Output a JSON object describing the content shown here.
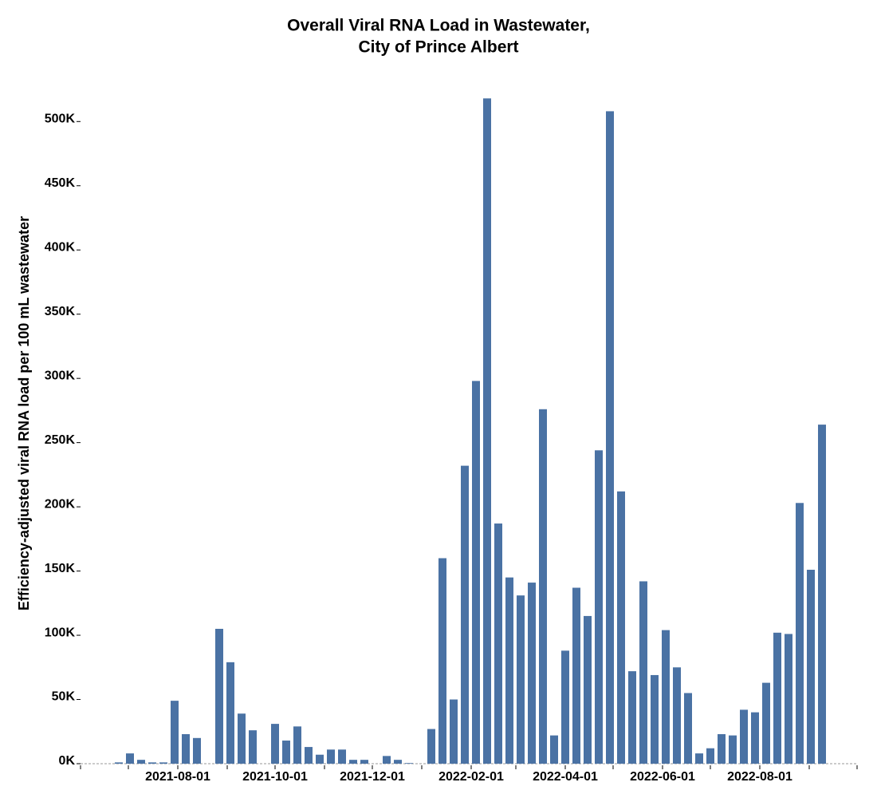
{
  "chart_data": {
    "type": "bar",
    "title": [
      "Overall Viral RNA Load in Wastewater,",
      "City of Prince Albert"
    ],
    "y_label": "Efficiency-adjusted viral RNA load per 100 mL wastewater",
    "color": "#4a72a4",
    "x": [
      "2021-06-25",
      "2021-07-02",
      "2021-07-09",
      "2021-07-16",
      "2021-07-23",
      "2021-07-30",
      "2021-08-06",
      "2021-08-13",
      "2021-08-20",
      "2021-08-27",
      "2021-09-03",
      "2021-09-10",
      "2021-09-17",
      "2021-09-24",
      "2021-10-01",
      "2021-10-08",
      "2021-10-15",
      "2021-10-22",
      "2021-10-29",
      "2021-11-05",
      "2021-11-12",
      "2021-11-19",
      "2021-11-26",
      "2021-12-03",
      "2021-12-10",
      "2021-12-17",
      "2021-12-24",
      "2021-12-31",
      "2022-01-07",
      "2022-01-14",
      "2022-01-21",
      "2022-01-28",
      "2022-02-04",
      "2022-02-11",
      "2022-02-18",
      "2022-02-25",
      "2022-03-04",
      "2022-03-11",
      "2022-03-18",
      "2022-03-25",
      "2022-04-01",
      "2022-04-08",
      "2022-04-15",
      "2022-04-22",
      "2022-04-29",
      "2022-05-06",
      "2022-05-13",
      "2022-05-20",
      "2022-05-27",
      "2022-06-03",
      "2022-06-10",
      "2022-06-17",
      "2022-06-24",
      "2022-07-01",
      "2022-07-08",
      "2022-07-15",
      "2022-07-22",
      "2022-07-29",
      "2022-08-05",
      "2022-08-12",
      "2022-08-19",
      "2022-08-26",
      "2022-09-02",
      "2022-09-09"
    ],
    "values": [
      1000,
      8000,
      3000,
      1000,
      1000,
      49000,
      23000,
      20000,
      null,
      105000,
      79000,
      39000,
      26000,
      null,
      31000,
      18000,
      29000,
      13000,
      7000,
      11000,
      11000,
      3000,
      3000,
      null,
      6000,
      3000,
      500,
      null,
      27000,
      160000,
      50000,
      232000,
      298000,
      518000,
      187000,
      145000,
      131000,
      141000,
      276000,
      22000,
      88000,
      137000,
      115000,
      244000,
      508000,
      212000,
      72000,
      142000,
      69000,
      104000,
      75000,
      55000,
      8000,
      12000,
      23000,
      22000,
      42000,
      40000,
      63000,
      102000,
      101000,
      203000,
      151000,
      264000
    ],
    "xlim": [
      "2021-06-01",
      "2022-10-01"
    ],
    "xticks": [
      "2021-08-01",
      "2021-10-01",
      "2021-12-01",
      "2022-02-01",
      "2022-04-01",
      "2022-06-01",
      "2022-08-01"
    ],
    "xminorticks": [
      "2021-07-01",
      "2021-09-01",
      "2021-11-01",
      "2022-01-01",
      "2022-03-01",
      "2022-05-01",
      "2022-07-01",
      "2022-09-01"
    ],
    "ylim": [
      0,
      530000
    ],
    "yticks": [
      {
        "value": 0,
        "label": "0K"
      },
      {
        "value": 50000,
        "label": "50K"
      },
      {
        "value": 100000,
        "label": "100K"
      },
      {
        "value": 150000,
        "label": "150K"
      },
      {
        "value": 200000,
        "label": "200K"
      },
      {
        "value": 250000,
        "label": "250K"
      },
      {
        "value": 300000,
        "label": "300K"
      },
      {
        "value": 350000,
        "label": "350K"
      },
      {
        "value": 400000,
        "label": "400K"
      },
      {
        "value": 450000,
        "label": "450K"
      },
      {
        "value": 500000,
        "label": "500K"
      }
    ]
  }
}
